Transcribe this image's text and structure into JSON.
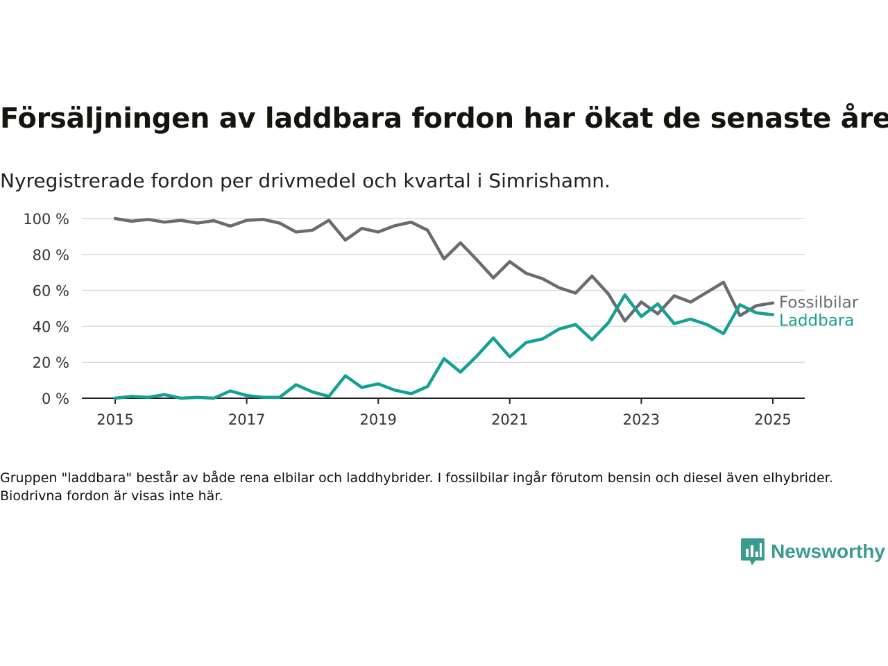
{
  "title": "Försäljningen av laddbara fordon har ökat de senaste åren",
  "subtitle": "Nyregistrerade fordon per drivmedel och kvartal i Simrishamn.",
  "note": "Gruppen \"laddbara\" består av både rena elbilar och laddhybrider. I fossilbilar ingår förutom bensin och diesel även elhybrider. Biodrivna fordon är visas inte här.",
  "brand": {
    "name": "Newsworthy",
    "icon": "newsworthy-logo-icon",
    "color": "#3a9c8e"
  },
  "chart_data": {
    "type": "line",
    "x_start_year": 2015,
    "x_step": "quarter",
    "xlim": [
      2014.75,
      2025.5
    ],
    "ylim": [
      0,
      100
    ],
    "x_ticks": [
      2015,
      2017,
      2019,
      2021,
      2023,
      2025
    ],
    "y_ticks": [
      0,
      20,
      40,
      60,
      80,
      100
    ],
    "y_tick_labels": [
      "0 %",
      "20 %",
      "40 %",
      "60 %",
      "80 %",
      "100 %"
    ],
    "grid": true,
    "legend": "direct labels at line ends",
    "series": [
      {
        "name": "Fossilbilar",
        "color": "#6b6a70",
        "values": [
          100,
          98.5,
          99.5,
          98,
          99,
          97.5,
          98.8,
          95.8,
          99,
          99.5,
          97.5,
          92.5,
          93.5,
          99,
          88,
          94.5,
          92.5,
          96,
          98,
          93.5,
          77.5,
          86.5,
          77,
          67,
          76,
          69.5,
          66.5,
          61.5,
          58.5,
          68,
          58,
          43,
          53.5,
          47,
          57,
          53.5,
          59,
          64.5,
          46,
          51.5,
          53
        ]
      },
      {
        "name": "Laddbara",
        "color": "#14a093",
        "values": [
          0,
          1,
          0.5,
          2,
          0,
          0.5,
          0,
          4,
          1.5,
          0.5,
          0.5,
          7.5,
          3.5,
          1,
          12.5,
          6,
          8,
          4.5,
          2.5,
          6.5,
          22,
          14.5,
          23.5,
          33.5,
          23,
          31,
          33,
          38.5,
          41,
          32.5,
          42,
          57.5,
          45.5,
          52.5,
          41.5,
          44,
          41,
          36,
          52,
          47.5,
          46.5
        ]
      }
    ]
  }
}
